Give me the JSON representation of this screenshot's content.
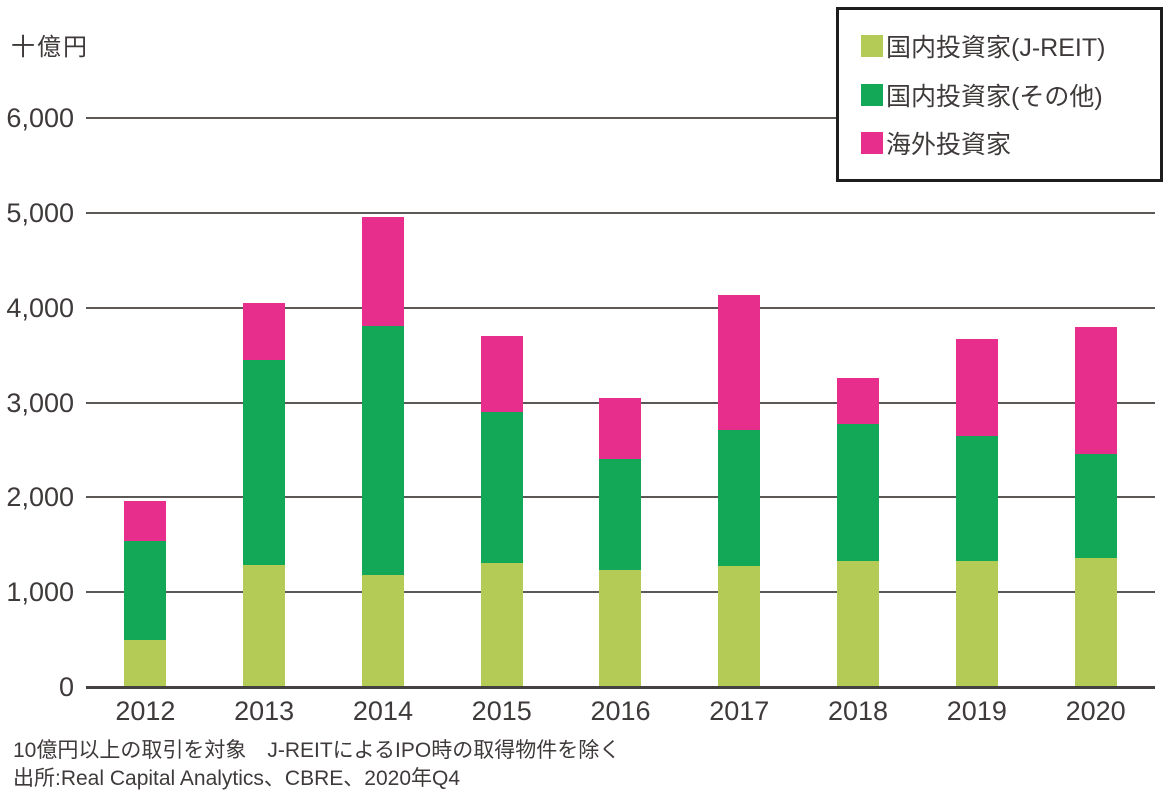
{
  "unit_label": "十億円",
  "legend": [
    {
      "label": "国内投資家(J-REIT)",
      "color": "#b4cb56"
    },
    {
      "label": "国内投資家(その他)",
      "color": "#12a857"
    },
    {
      "label": "海外投資家",
      "color": "#e72e8d"
    }
  ],
  "footnotes": [
    "10億円以上の取引を対象　J-REITによるIPO時の取得物件を除く",
    "出所:Real Capital Analytics、CBRE、2020年Q4"
  ],
  "chart_data": {
    "type": "bar",
    "stacked": true,
    "title": "",
    "ylabel": "十億円",
    "xlabel": "",
    "ylim": [
      0,
      6000
    ],
    "ytick_interval": 1000,
    "yticks": [
      "0",
      "1,000",
      "2,000",
      "3,000",
      "4,000",
      "5,000",
      "6,000"
    ],
    "grid": true,
    "legend_position": "top-right",
    "categories": [
      "2012",
      "2013",
      "2014",
      "2015",
      "2016",
      "2017",
      "2018",
      "2019",
      "2020"
    ],
    "series": [
      {
        "name": "国内投資家(J-REIT)",
        "color": "#b4cb56",
        "values": [
          480,
          1280,
          1170,
          1300,
          1220,
          1270,
          1320,
          1320,
          1350
        ]
      },
      {
        "name": "国内投資家(その他)",
        "color": "#12a857",
        "values": [
          1050,
          2160,
          2630,
          1590,
          1170,
          1430,
          1440,
          1320,
          1100
        ]
      },
      {
        "name": "海外投資家",
        "color": "#e72e8d",
        "values": [
          420,
          600,
          1150,
          800,
          650,
          1420,
          490,
          1020,
          1340
        ]
      }
    ],
    "totals": [
      1950,
      4040,
      4950,
      3690,
      3040,
      4120,
      3250,
      3660,
      3790
    ]
  },
  "colors": {
    "text": "#3e3a39",
    "gridline": "#5c5856",
    "axis_baseline": "#454140",
    "legend_border": "#1d1d1b",
    "background": "#ffffff"
  }
}
